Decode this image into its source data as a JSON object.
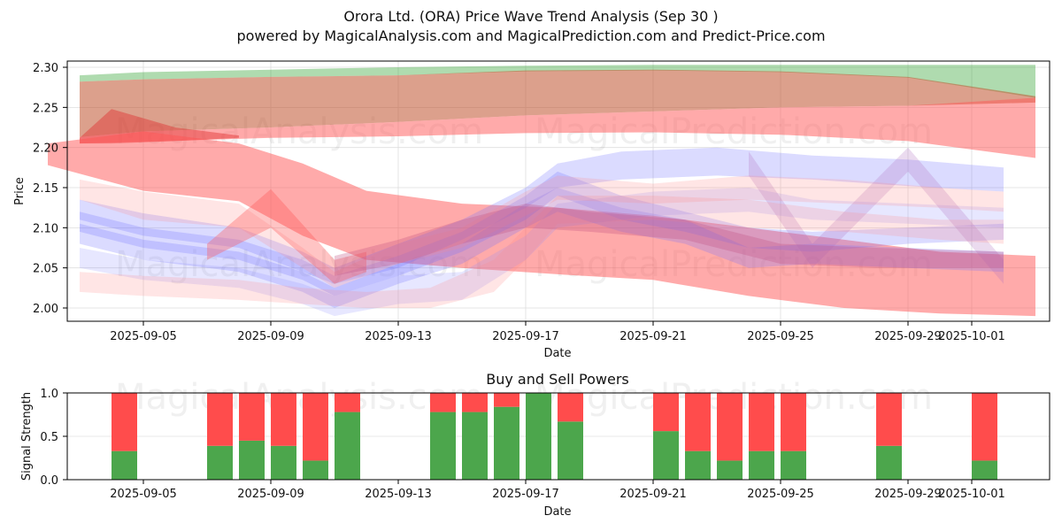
{
  "header": {
    "title": "Orora Ltd. (ORA) Price Wave Trend Analysis (Sep 30 )",
    "subtitle": "powered by MagicalAnalysis.com and MagicalPrediction.com and Predict-Price.com"
  },
  "watermarks": [
    "MagicalAnalysis.com",
    "MagicalPrediction.com"
  ],
  "chart_data": [
    {
      "type": "area",
      "title": "",
      "xlabel": "Date",
      "ylabel": "Price",
      "ylim": [
        1.985,
        2.305
      ],
      "xlim": [
        "2025-09-02",
        "2025-10-03"
      ],
      "grid": true,
      "x_ticks": [
        "2025-09-05",
        "2025-09-09",
        "2025-09-13",
        "2025-09-17",
        "2025-09-21",
        "2025-09-25",
        "2025-09-29",
        "2025-10-01"
      ],
      "y_ticks": [
        "2.00",
        "2.05",
        "2.10",
        "2.15",
        "2.20",
        "2.25",
        "2.30"
      ],
      "series": [
        {
          "name": "upper-green-band",
          "color": "#2ca02c",
          "opacity": 0.38,
          "x": [
            "2025-09-03",
            "2025-09-05",
            "2025-09-09",
            "2025-09-13",
            "2025-09-17",
            "2025-09-21",
            "2025-09-25",
            "2025-09-29",
            "2025-10-03"
          ],
          "upper": [
            2.29,
            2.294,
            2.297,
            2.3,
            2.302,
            2.303,
            2.303,
            2.303,
            2.303
          ],
          "lower": [
            2.282,
            2.285,
            2.288,
            2.29,
            2.295,
            2.296,
            2.294,
            2.287,
            2.262
          ]
        },
        {
          "name": "brown-band",
          "color": "#c0522e",
          "opacity": 0.55,
          "x": [
            "2025-09-03",
            "2025-09-05",
            "2025-09-09",
            "2025-09-13",
            "2025-09-17",
            "2025-09-21",
            "2025-09-25",
            "2025-09-29",
            "2025-10-03"
          ],
          "upper": [
            2.282,
            2.285,
            2.288,
            2.29,
            2.296,
            2.297,
            2.295,
            2.288,
            2.264
          ],
          "lower": [
            2.213,
            2.22,
            2.225,
            2.232,
            2.24,
            2.245,
            2.25,
            2.252,
            2.256
          ]
        },
        {
          "name": "red-top-band",
          "color": "#ff5555",
          "opacity": 0.5,
          "x": [
            "2025-09-03",
            "2025-09-05",
            "2025-09-09",
            "2025-09-13",
            "2025-09-17",
            "2025-09-21",
            "2025-09-25",
            "2025-09-29",
            "2025-10-03"
          ],
          "upper": [
            2.213,
            2.22,
            2.225,
            2.232,
            2.24,
            2.245,
            2.25,
            2.252,
            2.262
          ],
          "lower": [
            2.205,
            2.207,
            2.212,
            2.214,
            2.218,
            2.219,
            2.216,
            2.208,
            2.187
          ]
        },
        {
          "name": "red-spike-band",
          "color": "#e03030",
          "opacity": 0.45,
          "x": [
            "2025-09-03",
            "2025-09-04",
            "2025-09-06",
            "2025-09-08"
          ],
          "upper": [
            2.212,
            2.248,
            2.225,
            2.215
          ],
          "lower": [
            2.205,
            2.205,
            2.208,
            2.212
          ]
        },
        {
          "name": "red-falling-band",
          "color": "#ff5555",
          "opacity": 0.5,
          "x": [
            "2025-09-02",
            "2025-09-05",
            "2025-09-08",
            "2025-09-10",
            "2025-09-12",
            "2025-09-15",
            "2025-09-18",
            "2025-09-21",
            "2025-09-24",
            "2025-09-27",
            "2025-09-30",
            "2025-10-03"
          ],
          "upper": [
            2.205,
            2.22,
            2.205,
            2.18,
            2.146,
            2.13,
            2.125,
            2.115,
            2.1,
            2.085,
            2.07,
            2.065
          ],
          "lower": [
            2.178,
            2.146,
            2.133,
            2.09,
            2.06,
            2.05,
            2.042,
            2.035,
            2.015,
            2.0,
            1.993,
            1.99
          ]
        },
        {
          "name": "blue-band-1",
          "color": "#6e6eff",
          "opacity": 0.25,
          "x": [
            "2025-09-03",
            "2025-09-05",
            "2025-09-08",
            "2025-09-10",
            "2025-09-11",
            "2025-09-13",
            "2025-09-15",
            "2025-09-17",
            "2025-09-18",
            "2025-09-20",
            "2025-09-23",
            "2025-09-26",
            "2025-09-29",
            "2025-10-02"
          ],
          "upper": [
            2.135,
            2.118,
            2.1,
            2.07,
            2.05,
            2.08,
            2.11,
            2.15,
            2.18,
            2.195,
            2.2,
            2.19,
            2.185,
            2.175
          ],
          "lower": [
            2.11,
            2.09,
            2.075,
            2.045,
            2.03,
            2.05,
            2.085,
            2.125,
            2.15,
            2.16,
            2.165,
            2.16,
            2.152,
            2.145
          ]
        },
        {
          "name": "blue-band-2",
          "color": "#6e6eff",
          "opacity": 0.25,
          "x": [
            "2025-09-03",
            "2025-09-05",
            "2025-09-08",
            "2025-09-10",
            "2025-09-11",
            "2025-09-13",
            "2025-09-15",
            "2025-09-17",
            "2025-09-18",
            "2025-09-20",
            "2025-09-22",
            "2025-09-24",
            "2025-09-26",
            "2025-09-29",
            "2025-10-02"
          ],
          "upper": [
            2.12,
            2.1,
            2.085,
            2.06,
            2.04,
            2.065,
            2.095,
            2.14,
            2.17,
            2.14,
            2.12,
            2.1,
            2.095,
            2.1,
            2.105
          ],
          "lower": [
            2.095,
            2.075,
            2.06,
            2.035,
            2.015,
            2.04,
            2.07,
            2.11,
            2.14,
            2.11,
            2.095,
            2.075,
            2.07,
            2.08,
            2.085
          ]
        },
        {
          "name": "blue-band-3",
          "color": "#6e6eff",
          "opacity": 0.25,
          "x": [
            "2025-09-03",
            "2025-09-05",
            "2025-09-08",
            "2025-09-10",
            "2025-09-11",
            "2025-09-13",
            "2025-09-15",
            "2025-09-17",
            "2025-09-18",
            "2025-09-20",
            "2025-09-22",
            "2025-09-24",
            "2025-09-26",
            "2025-09-29",
            "2025-10-02"
          ],
          "upper": [
            2.105,
            2.085,
            2.07,
            2.045,
            2.025,
            2.055,
            2.08,
            2.13,
            2.15,
            2.125,
            2.11,
            2.075,
            2.08,
            2.075,
            2.07
          ],
          "lower": [
            2.08,
            2.06,
            2.045,
            2.02,
            2.0,
            2.03,
            2.055,
            2.1,
            2.12,
            2.095,
            2.08,
            2.05,
            2.055,
            2.05,
            2.045
          ]
        },
        {
          "name": "blue-band-4",
          "color": "#8888ff",
          "opacity": 0.2,
          "x": [
            "2025-09-03",
            "2025-09-05",
            "2025-09-08",
            "2025-09-10",
            "2025-09-11",
            "2025-09-13",
            "2025-09-15",
            "2025-09-17",
            "2025-09-18",
            "2025-09-21",
            "2025-09-24",
            "2025-09-26",
            "2025-09-29",
            "2025-10-02"
          ],
          "upper": [
            2.075,
            2.06,
            2.05,
            2.03,
            2.015,
            2.04,
            2.045,
            2.09,
            2.13,
            2.145,
            2.15,
            2.135,
            2.13,
            2.125
          ],
          "lower": [
            2.05,
            2.035,
            2.025,
            2.005,
            1.99,
            2.005,
            2.01,
            2.06,
            2.1,
            2.115,
            2.12,
            2.11,
            2.105,
            2.1
          ]
        },
        {
          "name": "purple-zigzag-band",
          "color": "#b070c0",
          "opacity": 0.25,
          "x": [
            "2025-09-24",
            "2025-09-26",
            "2025-09-29",
            "2025-10-02"
          ],
          "upper": [
            2.195,
            2.08,
            2.2,
            2.06
          ],
          "lower": [
            2.165,
            2.05,
            2.17,
            2.03
          ]
        },
        {
          "name": "pink-band-1",
          "color": "#ff8888",
          "opacity": 0.22,
          "x": [
            "2025-09-03",
            "2025-09-05",
            "2025-09-08",
            "2025-09-10",
            "2025-09-11",
            "2025-09-13",
            "2025-09-15",
            "2025-09-17",
            "2025-09-18",
            "2025-09-21",
            "2025-09-24",
            "2025-09-27",
            "2025-09-30",
            "2025-10-02"
          ],
          "upper": [
            2.16,
            2.145,
            2.13,
            2.075,
            2.045,
            2.08,
            2.1,
            2.145,
            2.165,
            2.155,
            2.165,
            2.16,
            2.15,
            2.145
          ],
          "lower": [
            2.135,
            2.11,
            2.1,
            2.05,
            2.025,
            2.055,
            2.075,
            2.115,
            2.135,
            2.13,
            2.135,
            2.13,
            2.125,
            2.12
          ]
        },
        {
          "name": "pink-band-2",
          "color": "#ff8888",
          "opacity": 0.22,
          "x": [
            "2025-09-03",
            "2025-09-05",
            "2025-09-08",
            "2025-09-10",
            "2025-09-12",
            "2025-09-14",
            "2025-09-16",
            "2025-09-17",
            "2025-09-18",
            "2025-09-21",
            "2025-09-24",
            "2025-09-27",
            "2025-09-30",
            "2025-10-02"
          ],
          "upper": [
            2.045,
            2.04,
            2.035,
            2.025,
            2.02,
            2.025,
            2.06,
            2.1,
            2.14,
            2.14,
            2.135,
            2.12,
            2.11,
            2.11
          ],
          "lower": [
            2.02,
            2.015,
            2.01,
            2.005,
            2.0,
            2.0,
            2.02,
            2.06,
            2.105,
            2.11,
            2.1,
            2.095,
            2.085,
            2.08
          ]
        },
        {
          "name": "red-spike-mid",
          "color": "#ff5555",
          "opacity": 0.35,
          "x": [
            "2025-09-07",
            "2025-09-09",
            "2025-09-11",
            "2025-09-12"
          ],
          "upper": [
            2.08,
            2.148,
            2.06,
            2.07
          ],
          "lower": [
            2.06,
            2.1,
            2.03,
            2.045
          ]
        },
        {
          "name": "magenta-band",
          "color": "#c05080",
          "opacity": 0.3,
          "x": [
            "2025-09-11",
            "2025-09-13",
            "2025-09-15",
            "2025-09-17",
            "2025-09-19",
            "2025-09-22",
            "2025-09-25",
            "2025-09-28",
            "2025-10-02"
          ],
          "upper": [
            2.065,
            2.085,
            2.11,
            2.13,
            2.12,
            2.11,
            2.08,
            2.075,
            2.07
          ],
          "lower": [
            2.04,
            2.055,
            2.08,
            2.1,
            2.095,
            2.085,
            2.055,
            2.05,
            2.05
          ]
        }
      ]
    },
    {
      "type": "bar",
      "title": "Buy and Sell Powers",
      "xlabel": "Date",
      "ylabel": "Signal Strength",
      "ylim": [
        0,
        1.0
      ],
      "y_ticks": [
        "0.0",
        "0.5",
        "1.0"
      ],
      "x_ticks": [
        "2025-09-05",
        "2025-09-09",
        "2025-09-13",
        "2025-09-17",
        "2025-09-21",
        "2025-09-25",
        "2025-09-29",
        "2025-10-01"
      ],
      "grid": true,
      "categories": [
        "2025-09-04",
        "2025-09-07",
        "2025-09-08",
        "2025-09-09",
        "2025-09-10",
        "2025-09-11",
        "2025-09-14",
        "2025-09-15",
        "2025-09-16",
        "2025-09-17",
        "2025-09-18",
        "2025-09-21",
        "2025-09-22",
        "2025-09-23",
        "2025-09-24",
        "2025-09-25",
        "2025-09-28",
        "2025-10-01"
      ],
      "series": [
        {
          "name": "Buy",
          "color": "#4ca64c",
          "values": [
            0.33,
            0.39,
            0.45,
            0.39,
            0.22,
            0.78,
            0.78,
            0.78,
            0.84,
            1.0,
            0.67,
            0.56,
            0.33,
            0.22,
            0.33,
            0.33,
            0.39,
            0.22
          ]
        },
        {
          "name": "Sell",
          "color": "#ff4c4c",
          "values": [
            0.67,
            0.61,
            0.55,
            0.61,
            0.78,
            0.22,
            0.22,
            0.22,
            0.16,
            0.0,
            0.33,
            0.44,
            0.67,
            0.78,
            0.67,
            0.67,
            0.61,
            0.78
          ]
        }
      ]
    }
  ]
}
